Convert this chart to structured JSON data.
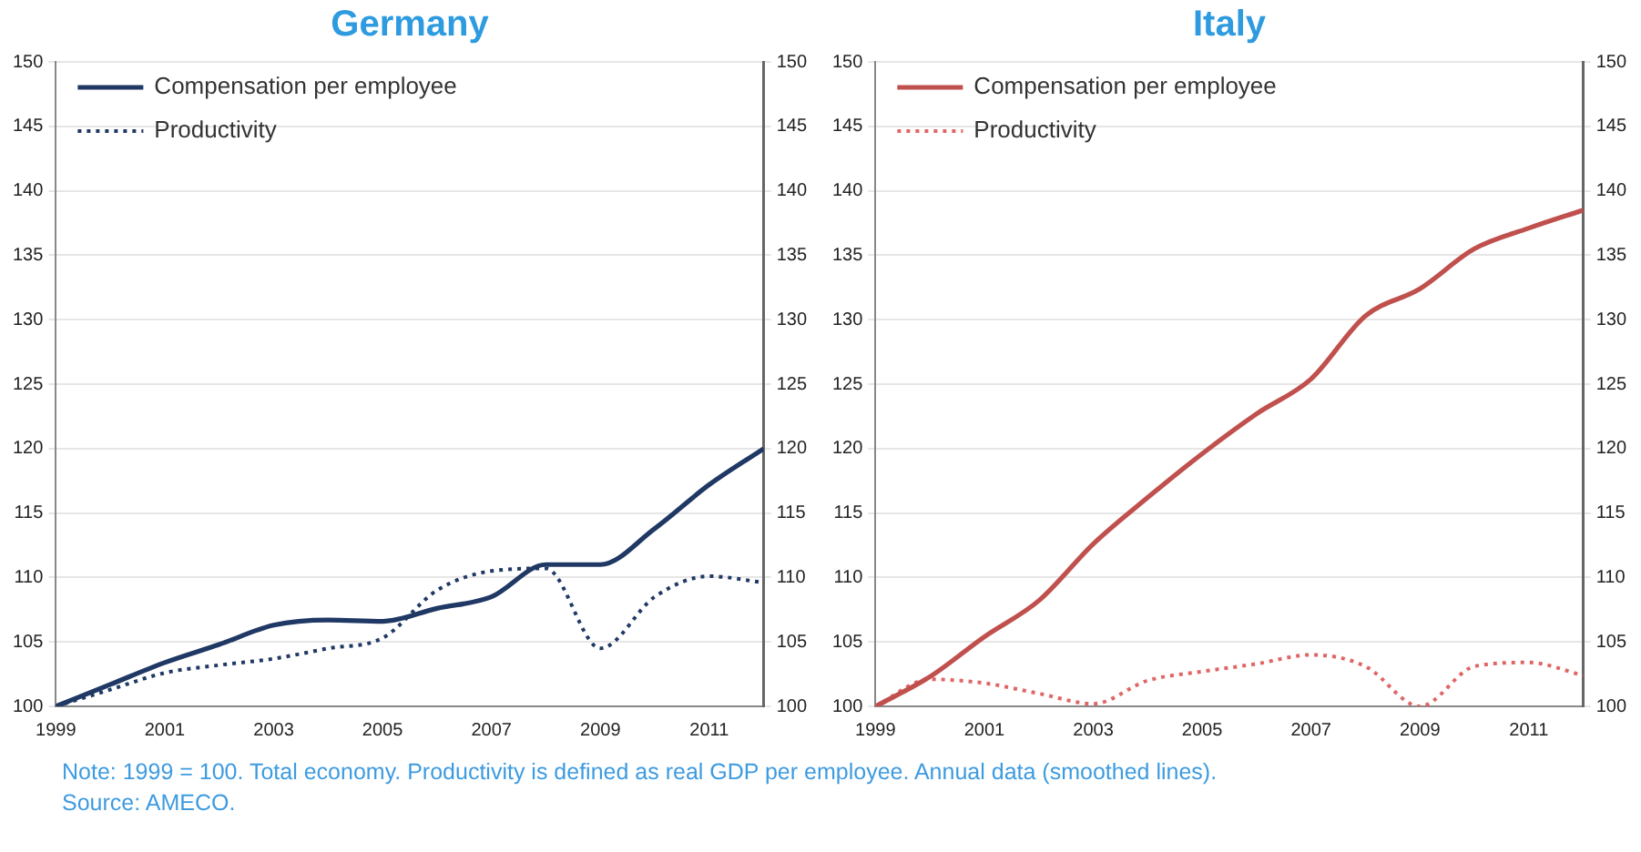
{
  "chart_data": [
    {
      "type": "line",
      "title": "Germany",
      "x": [
        1999,
        2000,
        2001,
        2002,
        2003,
        2004,
        2005,
        2006,
        2007,
        2008,
        2009,
        2010,
        2011,
        2012
      ],
      "xlim": [
        1999,
        2012
      ],
      "xticks": [
        1999,
        2001,
        2003,
        2005,
        2007,
        2009,
        2011
      ],
      "ylim": [
        100,
        150
      ],
      "yticks": [
        100,
        105,
        110,
        115,
        120,
        125,
        130,
        135,
        140,
        145,
        150
      ],
      "y2lim": [
        100,
        150
      ],
      "y2ticks": [
        100,
        105,
        110,
        115,
        120,
        125,
        130,
        135,
        140,
        145,
        150
      ],
      "grid": "y",
      "legend": "top left",
      "marker": "none",
      "series": [
        {
          "name": "Compensation per employee",
          "color": "#1f3864",
          "line_style": "solid",
          "values": [
            100,
            101.7,
            103.4,
            104.8,
            106.3,
            106.7,
            106.6,
            107.6,
            108.5,
            111,
            111,
            113.8,
            117.2,
            120
          ]
        },
        {
          "name": "Productivity",
          "color": "#1f3864",
          "line_style": "dotted",
          "values": [
            100,
            101.3,
            102.6,
            103.2,
            103.7,
            104.5,
            105.3,
            109,
            110.5,
            110.7,
            104.5,
            108.5,
            110.1,
            109.6
          ]
        }
      ],
      "annotations": [
        "Note: 1999 = 100. Total economy. Productivity is defined as real GDP per employee. Annual data (smoothed lines).",
        "Source: AMECO."
      ]
    },
    {
      "type": "line",
      "title": "Italy",
      "x": [
        1999,
        2000,
        2001,
        2002,
        2003,
        2004,
        2005,
        2006,
        2007,
        2008,
        2009,
        2010,
        2011,
        2012
      ],
      "xlim": [
        1999,
        2012
      ],
      "xticks": [
        1999,
        2001,
        2003,
        2005,
        2007,
        2009,
        2011
      ],
      "ylim": [
        100,
        150
      ],
      "yticks": [
        100,
        105,
        110,
        115,
        120,
        125,
        130,
        135,
        140,
        145,
        150
      ],
      "y2lim": [
        100,
        150
      ],
      "y2ticks": [
        100,
        105,
        110,
        115,
        120,
        125,
        130,
        135,
        140,
        145,
        150
      ],
      "grid": "y",
      "legend": "top left",
      "marker": "none",
      "series": [
        {
          "name": "Compensation per employee",
          "color": "#c0504d",
          "line_style": "solid",
          "values": [
            100,
            102.3,
            105.4,
            108.2,
            112.6,
            116.2,
            119.6,
            122.7,
            125.4,
            130.3,
            132.4,
            135.5,
            137.1,
            138.5
          ]
        },
        {
          "name": "Productivity",
          "color": "#e06666",
          "line_style": "dotted",
          "values": [
            100,
            102.1,
            101.8,
            101,
            100.2,
            102,
            102.7,
            103.3,
            104,
            103.1,
            100,
            103.1,
            103.4,
            102.4
          ]
        }
      ]
    }
  ]
}
